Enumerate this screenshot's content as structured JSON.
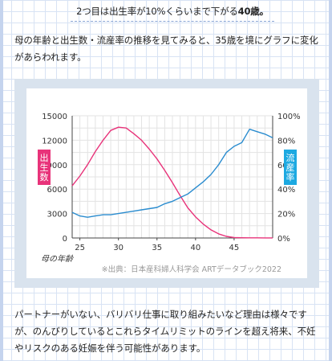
{
  "caption": {
    "text_before": "2つ目は出生率が10%くらいまで下がる",
    "text_bold": "40歳。"
  },
  "paragraph1": "母の年齢と出生数・流産率の推移を見てみると、35歳を境にグラフに変化があらわれます。",
  "paragraph2": "パートナーがいない、バリバリ仕事に取り組みたいなど理由は様々ですが、のんびりしているとこれらタイムリミットのラインを超え将来、不妊やリスクのある妊娠を伴う可能性があります。",
  "chart_data": {
    "type": "line",
    "xlabel": "母の年齢",
    "xlim": [
      24,
      50
    ],
    "x_ticks": [
      25,
      30,
      35,
      40,
      45
    ],
    "ylim_left": [
      0,
      15000
    ],
    "y_ticks_left": [
      0,
      3000,
      6000,
      9000,
      12000,
      15000
    ],
    "ylim_right": [
      0,
      100
    ],
    "y_ticks_right": [
      "0%",
      "20%",
      "40%",
      "60%",
      "80%",
      "100%"
    ],
    "source": "※出典：日本産科婦人科学会 ARTデータブック2022",
    "series": [
      {
        "name": "出生数",
        "axis": "left",
        "color": "#e8337a",
        "x": [
          24,
          25,
          26,
          27,
          28,
          29,
          30,
          31,
          32,
          33,
          34,
          35,
          36,
          37,
          38,
          39,
          40,
          41,
          42,
          43,
          44,
          45,
          46,
          47,
          48,
          49,
          50
        ],
        "values": [
          6400,
          7600,
          9000,
          10600,
          12000,
          13200,
          13600,
          13500,
          12800,
          12000,
          10900,
          9700,
          8300,
          6800,
          5200,
          3700,
          2600,
          1700,
          1000,
          500,
          200,
          60,
          30,
          20,
          15,
          10,
          8
        ]
      },
      {
        "name": "流産率",
        "axis": "right",
        "color": "#2a8ccf",
        "x": [
          24,
          25,
          26,
          27,
          28,
          29,
          30,
          31,
          32,
          33,
          34,
          35,
          36,
          37,
          38,
          39,
          40,
          41,
          42,
          43,
          44,
          45,
          46,
          47,
          48,
          49,
          50
        ],
        "values": [
          21,
          18,
          17,
          18,
          19,
          19,
          20,
          21,
          22,
          23,
          24,
          25,
          28,
          30,
          33,
          36,
          41,
          46,
          52,
          60,
          70,
          75,
          78,
          89,
          87,
          85,
          82
        ]
      }
    ]
  },
  "colors": {
    "birth_label_bg": "#e8337a",
    "miscarriage_label_bg": "#1da9e1",
    "grid": "#e3e3e3",
    "frame": "#d9e3ee"
  }
}
